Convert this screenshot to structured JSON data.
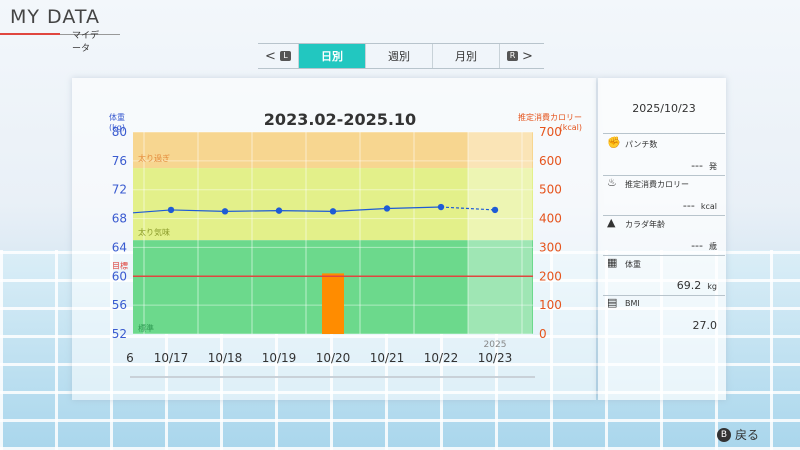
{
  "header": {
    "title": "MY DATA",
    "subtitle": "マイデータ"
  },
  "tabs": {
    "left_key": "L",
    "right_key": "R",
    "items": [
      {
        "label": "日別",
        "active": true
      },
      {
        "label": "週別",
        "active": false
      },
      {
        "label": "月別",
        "active": false
      }
    ]
  },
  "chart": {
    "range_title": "2023.02-2025.10",
    "left_axis_label": "体重",
    "left_axis_unit": "(kg)",
    "right_axis_label": "推定消費カロリー",
    "right_axis_unit": "(kcal)",
    "zone_labels": {
      "over": "太り過ぎ",
      "slightly": "太り気味",
      "target": "目標",
      "standard": "標準"
    },
    "year_label": "2025",
    "first_partial_tick": "6"
  },
  "chart_data": {
    "type": "line",
    "categories": [
      "10/17",
      "10/18",
      "10/19",
      "10/20",
      "10/21",
      "10/22",
      "10/23"
    ],
    "y_left": {
      "ticks": [
        80,
        76,
        72,
        68,
        64,
        60,
        56,
        52
      ],
      "range": [
        52,
        80
      ]
    },
    "y_right": {
      "ticks": [
        700,
        600,
        500,
        400,
        300,
        200,
        100,
        0
      ],
      "range": [
        0,
        700
      ]
    },
    "weight_series": {
      "values": [
        69.2,
        69.0,
        69.1,
        69.0,
        69.4,
        69.6,
        69.2
      ],
      "lead_in_value": 68.8
    },
    "calorie_bars": {
      "values": [
        0,
        0,
        0,
        210,
        0,
        0,
        0
      ]
    },
    "target_weight": 60,
    "zones": {
      "over_min": 75,
      "slightly_min": 65,
      "standard_max": 65
    },
    "colors": {
      "line": "#1e5bd6",
      "bar": "#ff8c00",
      "target_line": "#e0463f",
      "zone_over": "#f7d690",
      "zone_slight": "#e3f08a",
      "zone_standard": "#6cd98c"
    }
  },
  "side": {
    "date": "2025/10/23",
    "stats": [
      {
        "icon": "glove-icon",
        "label": "パンチ数",
        "value": "---",
        "unit": "発"
      },
      {
        "icon": "flame-icon",
        "label": "推定消費カロリー",
        "value": "---",
        "unit": "kcal"
      },
      {
        "icon": "muscle-icon",
        "label": "カラダ年齢",
        "value": "---",
        "unit": "歳"
      },
      {
        "icon": "scale-icon",
        "label": "体重",
        "value": "69.2",
        "unit": "kg"
      },
      {
        "icon": "calculator-icon",
        "label": "BMI",
        "value": "27.0",
        "unit": ""
      }
    ]
  },
  "footer": {
    "back_key": "B",
    "back_label": "戻る"
  }
}
